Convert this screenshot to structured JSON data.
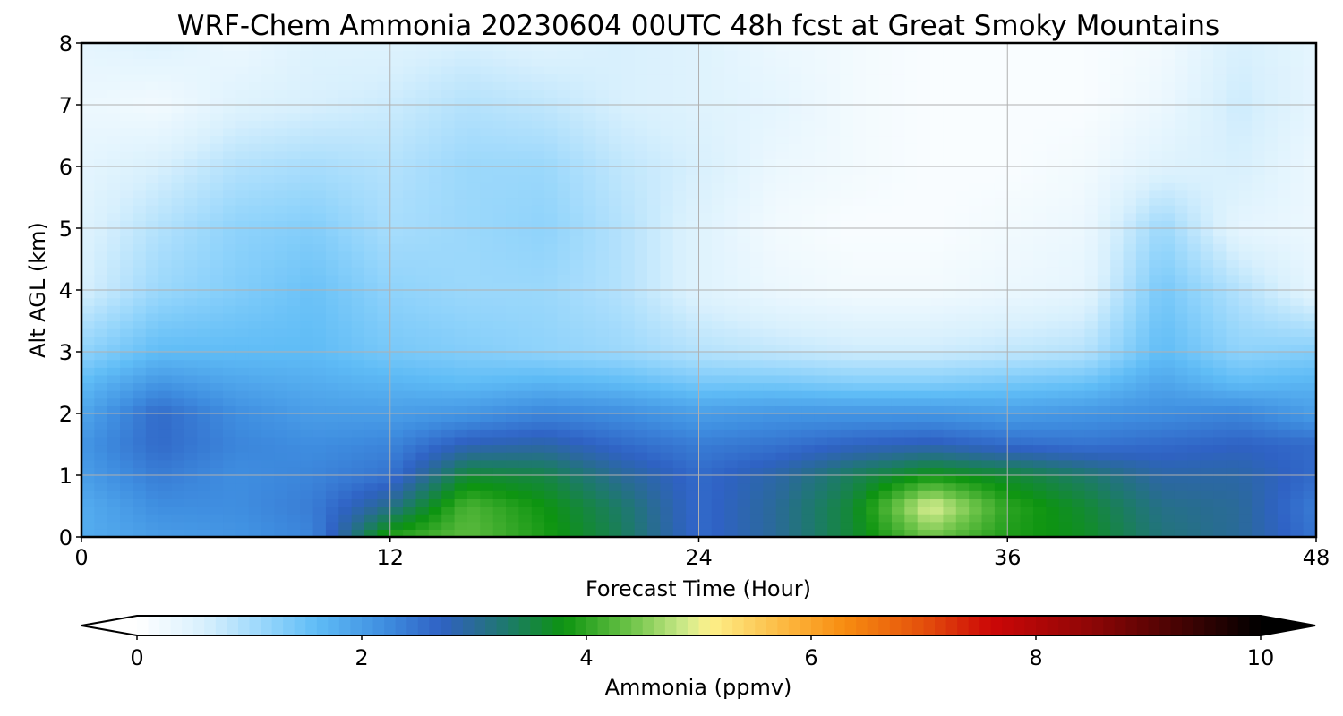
{
  "chart_data": {
    "type": "heatmap",
    "title": "WRF-Chem Ammonia  20230604 00UTC 48h fcst at Great Smoky Mountains",
    "xlabel": "Forecast Time (Hour)",
    "ylabel": "Alt AGL (km)",
    "xlim": [
      0,
      48
    ],
    "ylim": [
      0,
      8
    ],
    "xticks": [
      0,
      12,
      24,
      36,
      48
    ],
    "yticks": [
      0,
      1,
      2,
      3,
      4,
      5,
      6,
      7,
      8
    ],
    "grid": true,
    "x": [
      0,
      3,
      6,
      9,
      12,
      15,
      18,
      21,
      24,
      27,
      30,
      33,
      36,
      39,
      42,
      45,
      48
    ],
    "y": [
      0,
      0.5,
      1,
      1.5,
      2,
      2.5,
      3,
      4,
      5,
      6,
      7,
      8
    ],
    "z": [
      [
        1.8,
        2.0,
        2.1,
        2.3,
        4.0,
        4.3,
        3.9,
        3.4,
        2.6,
        3.0,
        3.6,
        4.4,
        3.9,
        3.7,
        3.2,
        3.0,
        2.5
      ],
      [
        1.8,
        2.2,
        2.2,
        2.4,
        3.1,
        4.2,
        3.8,
        3.3,
        2.6,
        3.0,
        3.6,
        5.0,
        4.0,
        3.6,
        3.1,
        3.0,
        2.4
      ],
      [
        2.0,
        2.4,
        2.2,
        2.3,
        2.5,
        3.6,
        3.5,
        3.0,
        2.6,
        2.9,
        3.4,
        3.8,
        3.6,
        3.3,
        2.9,
        2.9,
        2.6
      ],
      [
        2.1,
        2.6,
        2.3,
        2.2,
        2.3,
        2.8,
        2.9,
        2.6,
        2.4,
        2.5,
        2.7,
        2.8,
        2.6,
        2.5,
        2.6,
        2.7,
        2.6
      ],
      [
        1.9,
        2.6,
        2.2,
        2.0,
        2.0,
        2.1,
        2.3,
        2.2,
        2.0,
        2.1,
        2.1,
        2.1,
        2.0,
        2.1,
        2.2,
        2.3,
        2.0
      ],
      [
        1.6,
        2.1,
        1.9,
        1.8,
        1.7,
        1.6,
        1.7,
        1.6,
        1.4,
        1.4,
        1.3,
        1.3,
        1.4,
        1.5,
        1.9,
        1.6,
        1.7
      ],
      [
        1.2,
        1.6,
        1.6,
        1.6,
        1.4,
        1.3,
        1.2,
        1.1,
        0.9,
        0.8,
        0.7,
        0.7,
        0.8,
        0.9,
        1.6,
        1.2,
        1.3
      ],
      [
        0.6,
        1.1,
        1.3,
        1.5,
        1.2,
        1.1,
        1.1,
        0.9,
        0.5,
        0.3,
        0.2,
        0.2,
        0.3,
        0.4,
        1.4,
        0.9,
        0.4
      ],
      [
        0.5,
        0.9,
        1.2,
        1.3,
        1.0,
        1.1,
        1.2,
        0.9,
        0.5,
        0.2,
        0.1,
        0.1,
        0.2,
        0.3,
        1.1,
        0.4,
        0.3
      ],
      [
        0.4,
        0.6,
        0.9,
        1.0,
        0.9,
        1.1,
        1.1,
        0.8,
        0.6,
        0.3,
        0.2,
        0.1,
        0.1,
        0.2,
        0.5,
        0.6,
        0.3
      ],
      [
        0.3,
        0.2,
        0.5,
        0.6,
        0.7,
        0.9,
        0.8,
        0.6,
        0.5,
        0.4,
        0.2,
        0.1,
        0.1,
        0.1,
        0.3,
        0.7,
        0.4
      ],
      [
        0.4,
        0.5,
        0.3,
        0.5,
        0.5,
        0.6,
        0.5,
        0.6,
        0.5,
        0.3,
        0.2,
        0.1,
        0.1,
        0.1,
        0.2,
        0.6,
        0.4
      ]
    ],
    "colorbar": {
      "label": "Ammonia  (ppmv)",
      "range": [
        0,
        10
      ],
      "ticks": [
        0,
        2,
        4,
        6,
        8,
        10
      ],
      "extend": "both",
      "stops": [
        {
          "v": 0.0,
          "c": "#ffffff"
        },
        {
          "v": 0.6,
          "c": "#d8f0fd"
        },
        {
          "v": 1.2,
          "c": "#8fd3fb"
        },
        {
          "v": 1.6,
          "c": "#5fbcf6"
        },
        {
          "v": 2.2,
          "c": "#3f8ee0"
        },
        {
          "v": 2.7,
          "c": "#2f62c4"
        },
        {
          "v": 3.0,
          "c": "#2a6a98"
        },
        {
          "v": 3.3,
          "c": "#1d7a6a"
        },
        {
          "v": 3.8,
          "c": "#0d9410"
        },
        {
          "v": 4.4,
          "c": "#6ec449"
        },
        {
          "v": 4.9,
          "c": "#d3ec8d"
        },
        {
          "v": 5.1,
          "c": "#fdf08a"
        },
        {
          "v": 5.8,
          "c": "#fcb53c"
        },
        {
          "v": 6.3,
          "c": "#f78c10"
        },
        {
          "v": 7.0,
          "c": "#e4500c"
        },
        {
          "v": 7.6,
          "c": "#cc0707"
        },
        {
          "v": 8.5,
          "c": "#8e0606"
        },
        {
          "v": 9.4,
          "c": "#3a0303"
        },
        {
          "v": 10.0,
          "c": "#000000"
        }
      ]
    }
  }
}
